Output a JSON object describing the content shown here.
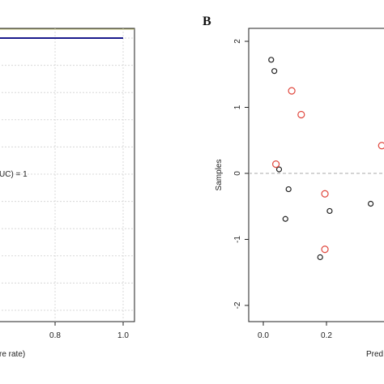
{
  "chart_data": [
    {
      "type": "line",
      "panel_label": "",
      "xlabel_visible": "re rate)",
      "annotation": "UC) = 1",
      "x_ticks": [
        "0.8",
        "1.0"
      ],
      "x_tick_values": [
        0.8,
        1.0
      ],
      "xlim_visible": [
        0.6,
        1.0
      ],
      "series": [
        {
          "x": [
            0.6,
            1.0
          ],
          "y": [
            1.0,
            1.0
          ],
          "color": "#1a1a8c"
        }
      ],
      "grid": true,
      "reference_line_color": "#b8b870"
    },
    {
      "type": "scatter",
      "panel_label": "B",
      "ylabel": "Samples",
      "xlabel_visible": "Pred",
      "x_ticks": [
        "0.0",
        "0.2"
      ],
      "x_tick_values": [
        0.0,
        0.2
      ],
      "y_ticks": [
        "-2",
        "-1",
        "0",
        "1",
        "2"
      ],
      "y_tick_values": [
        -2,
        -1,
        0,
        1,
        2
      ],
      "ylim": [
        -2.2,
        2.2
      ],
      "xlim_visible": [
        -0.02,
        0.42
      ],
      "reference_line_y": 0,
      "series": [
        {
          "color": "#222222",
          "points": [
            [
              0.025,
              1.72
            ],
            [
              0.035,
              1.55
            ],
            [
              0.05,
              0.06
            ],
            [
              0.08,
              -0.24
            ],
            [
              0.07,
              -0.69
            ],
            [
              0.21,
              -0.57
            ],
            [
              0.18,
              -1.27
            ],
            [
              0.34,
              -0.46
            ]
          ]
        },
        {
          "color": "#e0463c",
          "points": [
            [
              0.09,
              1.25
            ],
            [
              0.12,
              0.89
            ],
            [
              0.04,
              0.14
            ],
            [
              0.195,
              -0.31
            ],
            [
              0.195,
              -1.15
            ],
            [
              0.375,
              0.42
            ]
          ]
        }
      ]
    }
  ]
}
